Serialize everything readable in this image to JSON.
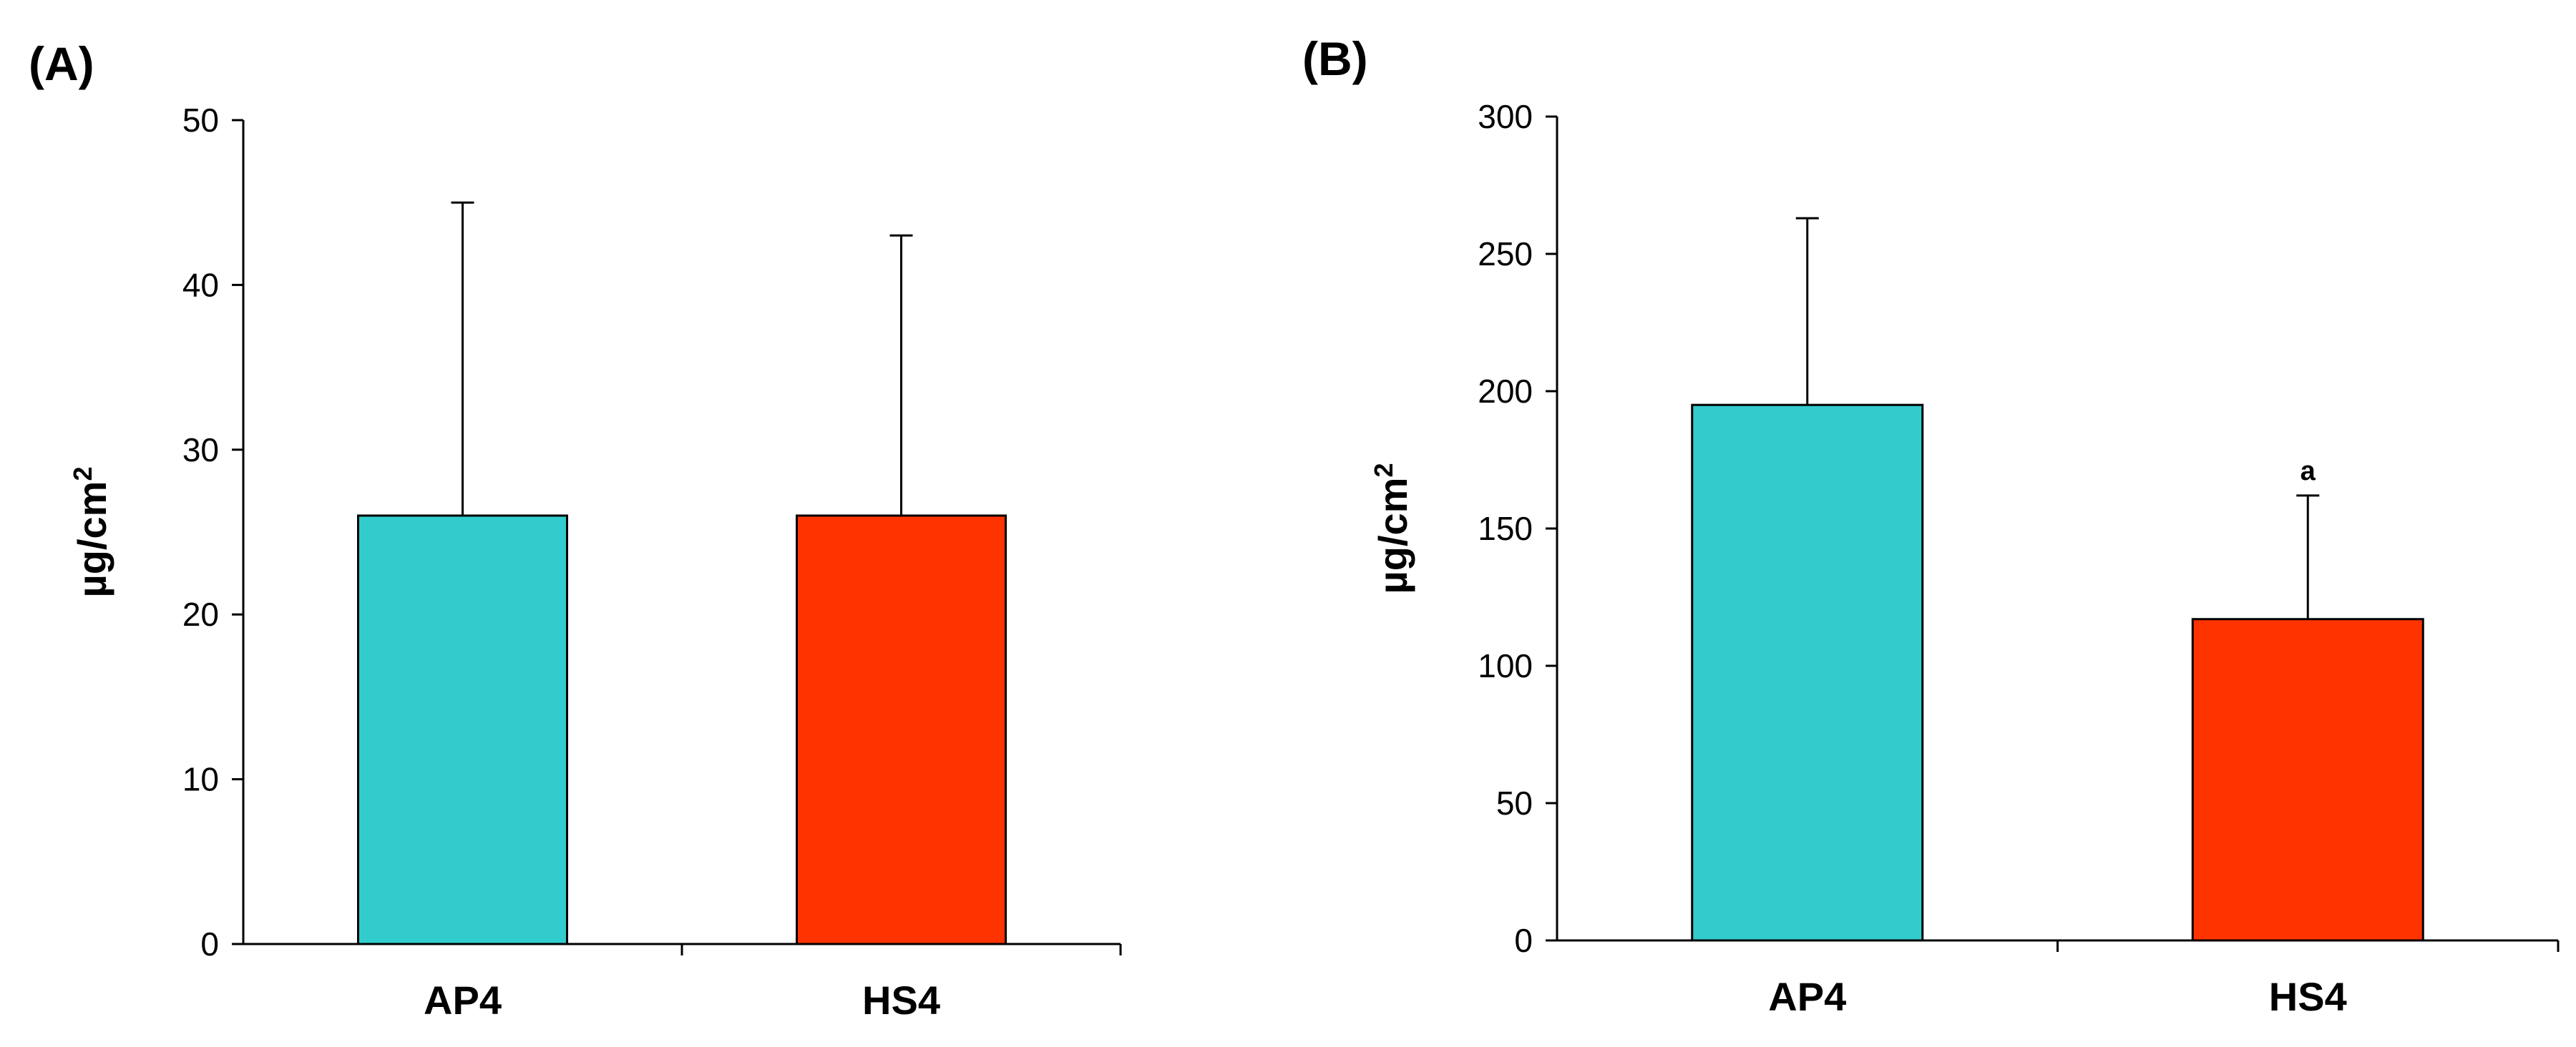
{
  "chart_data": [
    {
      "panel_label": "(A)",
      "type": "bar",
      "categories": [
        "AP4",
        "HS4"
      ],
      "values": [
        26,
        26
      ],
      "error_plus": [
        19,
        17
      ],
      "colors": [
        "#33CCCC",
        "#FF3300"
      ],
      "annotations": [
        "",
        ""
      ],
      "ylabel": "µg/cm",
      "ylabel_sup": "2",
      "ylim": [
        0,
        50
      ],
      "yticks": [
        0,
        10,
        20,
        30,
        40,
        50
      ],
      "grid": false
    },
    {
      "panel_label": "(B)",
      "type": "bar",
      "categories": [
        "AP4",
        "HS4"
      ],
      "values": [
        195,
        117
      ],
      "error_plus": [
        68,
        45
      ],
      "colors": [
        "#33CCCC",
        "#FF3300"
      ],
      "annotations": [
        "",
        "a"
      ],
      "ylabel": "µg/cm",
      "ylabel_sup": "2",
      "ylim": [
        0,
        300
      ],
      "yticks": [
        0,
        50,
        100,
        150,
        200,
        250,
        300
      ],
      "grid": false
    }
  ]
}
